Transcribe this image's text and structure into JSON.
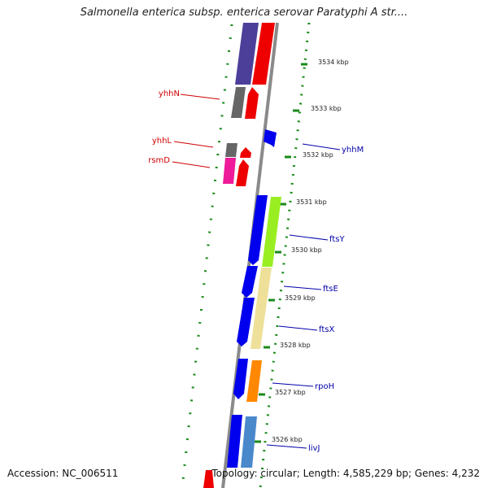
{
  "title": "Salmonella enterica subsp. enterica serovar Paratyphi A str....",
  "footer": {
    "accession": "Accession: NC_006511",
    "summary": "Topology: circular; Length: 4,585,229 bp; Genes: 4,232"
  },
  "ticks": [
    {
      "label": "3534 kbp"
    },
    {
      "label": "3533 kbp"
    },
    {
      "label": "3532 kbp"
    },
    {
      "label": "3531 kbp"
    },
    {
      "label": "3530 kbp"
    },
    {
      "label": "3529 kbp"
    },
    {
      "label": "3528 kbp"
    },
    {
      "label": "3527 kbp"
    },
    {
      "label": "3526 kbp"
    }
  ],
  "gene_labels": [
    {
      "name": "yhhN",
      "strand": "reverse",
      "color": "#cc0000"
    },
    {
      "name": "yhhL",
      "strand": "reverse",
      "color": "#cc0000"
    },
    {
      "name": "rsmD",
      "strand": "reverse",
      "color": "#cc0000"
    },
    {
      "name": "yhhM",
      "strand": "forward",
      "color": "#0000aa"
    },
    {
      "name": "ftsY",
      "strand": "forward",
      "color": "#0000aa"
    },
    {
      "name": "ftsE",
      "strand": "forward",
      "color": "#0000aa"
    },
    {
      "name": "ftsX",
      "strand": "forward",
      "color": "#0000aa"
    },
    {
      "name": "rpoH",
      "strand": "forward",
      "color": "#0000aa"
    },
    {
      "name": "livJ",
      "strand": "forward",
      "color": "#0000aa"
    }
  ],
  "colors": {
    "backbone": "#8a8a8a",
    "cds_forward": "#0000ee",
    "cds_reverse": "#ee0000",
    "ring_dots": "#1a8a1a",
    "cog_purple": "#4b3f9a",
    "cog_gray": "#666666",
    "cog_pink": "#ee1a99",
    "cog_green": "#99ee22",
    "cog_yellow": "#eee099",
    "cog_orange": "#ff8800",
    "cog_steelblue": "#4a88cc"
  }
}
